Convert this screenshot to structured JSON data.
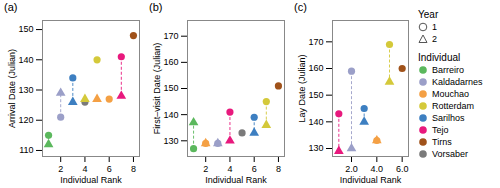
{
  "chart_data": [
    {
      "type": "scatter",
      "title": "(a)",
      "xlabel": "Individual Rank",
      "ylabel": "Arrival Date (Julian)",
      "xlim": [
        0.5,
        8.5
      ],
      "xticks": [
        2,
        4,
        6,
        8
      ],
      "ylim": [
        108,
        153
      ],
      "yticks": [
        110,
        120,
        130,
        140,
        150
      ],
      "series": [
        {
          "name": "1",
          "marker": "circle",
          "x": [
            1,
            2,
            3,
            4,
            5,
            6,
            7,
            8
          ],
          "values": [
            115,
            121,
            134,
            126,
            140,
            127,
            141,
            148
          ],
          "individuals": [
            "Barreiro",
            "Kaldadarnes",
            "Sarilhos",
            "Vorsaber",
            "Rotterdam",
            "Mouchao",
            "Tejo",
            "Tirns"
          ]
        },
        {
          "name": "2",
          "marker": "triangle",
          "x": [
            1,
            2,
            3,
            4,
            5,
            7
          ],
          "values": [
            112,
            129,
            126,
            127,
            127,
            128
          ],
          "individuals": [
            "Barreiro",
            "Kaldadarnes",
            "Sarilhos",
            "Rotterdam",
            "Mouchao",
            "Tejo"
          ]
        }
      ]
    },
    {
      "type": "scatter",
      "title": "(b)",
      "xlabel": "Individual Rank",
      "ylabel": "First–visit Date (Julian)",
      "xlim": [
        0.5,
        8.5
      ],
      "xticks": [
        2,
        4,
        6,
        8
      ],
      "ylim": [
        124,
        176
      ],
      "yticks": [
        130,
        140,
        150,
        160,
        170
      ],
      "series": [
        {
          "name": "1",
          "marker": "circle",
          "x": [
            1,
            2,
            3,
            4,
            5,
            6,
            7,
            8
          ],
          "values": [
            127,
            129,
            129,
            141,
            133,
            139,
            145,
            151
          ],
          "individuals": [
            "Barreiro",
            "Mouchao",
            "Kaldadarnes",
            "Tejo",
            "Vorsaber",
            "Sarilhos",
            "Rotterdam",
            "Tirns"
          ]
        },
        {
          "name": "2",
          "marker": "triangle",
          "x": [
            1,
            2,
            3,
            4,
            6,
            7
          ],
          "values": [
            137,
            129,
            129,
            130,
            133,
            136
          ],
          "individuals": [
            "Barreiro",
            "Mouchao",
            "Kaldadarnes",
            "Tejo",
            "Sarilhos",
            "Rotterdam"
          ]
        }
      ]
    },
    {
      "type": "scatter",
      "title": "(c)",
      "xlabel": "Individual Rank",
      "ylabel": "Lay Date (Julian)",
      "xlim": [
        0.5,
        6.5
      ],
      "xticks": [
        2,
        4,
        6
      ],
      "ylim": [
        127,
        178
      ],
      "yticks": [
        130,
        140,
        150,
        160,
        170
      ],
      "series": [
        {
          "name": "1",
          "marker": "circle",
          "x": [
            1,
            2,
            3,
            4,
            5,
            6
          ],
          "values": [
            143,
            159,
            145,
            133,
            169,
            160
          ],
          "individuals": [
            "Tejo",
            "Kaldadarnes",
            "Sarilhos",
            "Mouchao",
            "Rotterdam",
            "Tirns"
          ]
        },
        {
          "name": "2",
          "marker": "triangle",
          "x": [
            1,
            2,
            3,
            4,
            5
          ],
          "values": [
            129,
            130,
            140,
            133,
            155
          ],
          "individuals": [
            "Tejo",
            "Kaldadarnes",
            "Sarilhos",
            "Mouchao",
            "Rotterdam"
          ]
        }
      ]
    }
  ],
  "legends": [
    {
      "title": "Year",
      "entries": [
        {
          "name": "1",
          "marker": "circle"
        },
        {
          "name": "2",
          "marker": "triangle"
        }
      ]
    },
    {
      "title": "Individual",
      "entries": [
        {
          "name": "Barreiro",
          "color": "#5bb85d"
        },
        {
          "name": "Kaldadarnes",
          "color": "#9b9fc8"
        },
        {
          "name": "Mouchao",
          "color": "#f4a044"
        },
        {
          "name": "Rotterdam",
          "color": "#d4c93a"
        },
        {
          "name": "Sarilhos",
          "color": "#3d7fc1"
        },
        {
          "name": "Tejo",
          "color": "#e8197d"
        },
        {
          "name": "Tirns",
          "color": "#a0521a"
        },
        {
          "name": "Vorsaber",
          "color": "#7a7a7a"
        }
      ]
    }
  ]
}
